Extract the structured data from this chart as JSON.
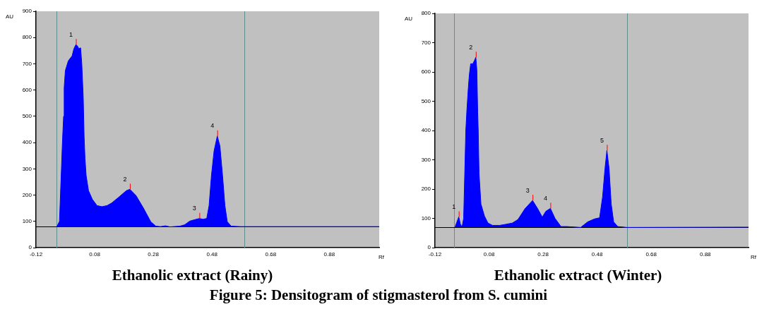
{
  "chart_data": [
    {
      "type": "area",
      "title": "Ethanolic extract (Rainy)",
      "xlabel": "Rf",
      "ylabel": "AU",
      "series": [
        {
          "color": "#0000ff",
          "x": [
            -0.049,
            -0.04,
            -0.035,
            -0.03,
            -0.026,
            -0.024,
            -0.02,
            -0.01,
            0.003,
            0.009,
            0.016,
            0.022,
            0.026,
            0.032,
            0.036,
            0.041,
            0.044,
            0.047,
            0.051,
            0.059,
            0.072,
            0.088,
            0.105,
            0.122,
            0.138,
            0.163,
            0.188,
            0.2,
            0.221,
            0.246,
            0.271,
            0.288,
            0.304,
            0.321,
            0.337,
            0.371,
            0.387,
            0.404,
            0.42,
            0.437,
            0.449,
            0.462,
            0.47,
            0.478,
            0.487,
            0.498,
            0.507,
            0.516,
            0.524,
            0.532,
            0.545,
            0.578,
            1.05
          ],
          "values": [
            80,
            100,
            250,
            400,
            500,
            609,
            674,
            711,
            730,
            757,
            773,
            767,
            757,
            761,
            702,
            572,
            424,
            340,
            274,
            217,
            184,
            160,
            156,
            160,
            170,
            193,
            217,
            222,
            198,
            151,
            99,
            82,
            80,
            83,
            79,
            82,
            87,
            101,
            106,
            111,
            108,
            111,
            160,
            274,
            368,
            425,
            387,
            274,
            160,
            99,
            82,
            80,
            80
          ]
        }
      ],
      "xlim": [
        -0.12,
        1.05
      ],
      "xticks": [
        -0.12,
        0.08,
        0.28,
        0.48,
        0.68,
        0.88
      ],
      "ylim": [
        0,
        900
      ],
      "yticks": [
        0,
        100,
        200,
        300,
        400,
        500,
        600,
        700,
        800,
        900
      ],
      "ref_lines": [
        {
          "axis": "x",
          "value": -0.05,
          "color": "#5f8f8f"
        },
        {
          "axis": "x",
          "value": 0.59,
          "color": "#5f8f8f"
        },
        {
          "axis": "y",
          "value": 80,
          "color": "#000000"
        }
      ],
      "annotations": [
        {
          "text": "1",
          "x": 0.016,
          "y": 773
        },
        {
          "text": "2",
          "x": 0.2,
          "y": 222
        },
        {
          "text": "3",
          "x": 0.437,
          "y": 111
        },
        {
          "text": "4",
          "x": 0.498,
          "y": 425
        },
        "Figure 5: Densitogram of stigmasterol from S. cumini"
      ]
    },
    {
      "type": "area",
      "title": "Ethanolic extract (Winter)",
      "xlabel": "Rf",
      "ylabel": "AU",
      "series": [
        {
          "color": "#0000ff",
          "x": [
            -0.046,
            -0.04,
            -0.032,
            -0.026,
            -0.02,
            -0.014,
            -0.01,
            -0.006,
            -0.002,
            0.003,
            0.007,
            0.012,
            0.02,
            0.026,
            0.031,
            0.035,
            0.038,
            0.04,
            0.043,
            0.05,
            0.063,
            0.076,
            0.093,
            0.119,
            0.144,
            0.166,
            0.187,
            0.213,
            0.241,
            0.26,
            0.277,
            0.29,
            0.307,
            0.324,
            0.346,
            0.367,
            0.419,
            0.445,
            0.47,
            0.489,
            0.5,
            0.509,
            0.516,
            0.524,
            0.532,
            0.541,
            0.556,
            0.59,
            1.04
          ],
          "values": [
            70,
            85,
            105,
            80,
            70,
            100,
            250,
            400,
            470,
            542,
            590,
            628,
            628,
            639,
            650,
            606,
            462,
            400,
            254,
            149,
            108,
            84,
            76,
            76,
            80,
            84,
            96,
            133,
            161,
            133,
            104,
            124,
            134,
            100,
            72,
            72,
            69,
            88,
            98,
            102,
            173,
            271,
            332,
            271,
            149,
            88,
            72,
            69,
            70
          ]
        }
      ],
      "xlim": [
        -0.12,
        1.04
      ],
      "xticks": [
        -0.12,
        0.08,
        0.28,
        0.48,
        0.68,
        0.88
      ],
      "ylim": [
        0,
        800
      ],
      "yticks": [
        0,
        100,
        200,
        300,
        400,
        500,
        600,
        700,
        800
      ],
      "ref_lines": [
        {
          "axis": "x",
          "value": -0.05,
          "color": "#5f8f8f"
        },
        {
          "axis": "x",
          "value": 0.59,
          "color": "#5f8f8f"
        },
        {
          "axis": "y",
          "value": 70,
          "color": "#000000"
        }
      ],
      "annotations": [
        {
          "text": "1",
          "x": -0.032,
          "y": 105
        },
        {
          "text": "2",
          "x": 0.031,
          "y": 650
        },
        {
          "text": "3",
          "x": 0.241,
          "y": 161
        },
        {
          "text": "4",
          "x": 0.307,
          "y": 134
        },
        {
          "text": "5",
          "x": 0.516,
          "y": 332
        }
      ]
    }
  ]
}
